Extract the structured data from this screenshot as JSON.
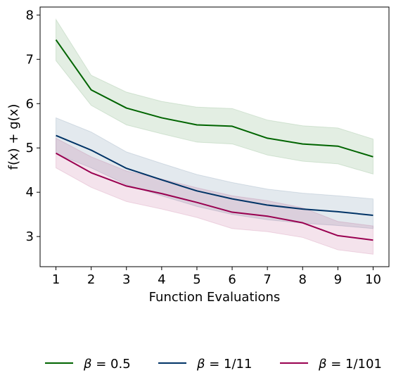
{
  "chart_data": {
    "type": "line",
    "title": "",
    "xlabel": "Function Evaluations",
    "ylabel": "f(x) + g(x)",
    "x": [
      1,
      2,
      3,
      4,
      5,
      6,
      7,
      8,
      9,
      10
    ],
    "xticks": [
      1,
      2,
      3,
      4,
      5,
      6,
      7,
      8,
      9,
      10
    ],
    "yticks": [
      3,
      4,
      5,
      6,
      7,
      8
    ],
    "xlim": [
      0.55,
      10.45
    ],
    "ylim": [
      2.32,
      8.18
    ],
    "grid": false,
    "legend_placement": "bottom",
    "series": [
      {
        "name_prefix": "β",
        "name_value": "= 0.5",
        "color": "#006400",
        "values": [
          7.44,
          6.31,
          5.9,
          5.68,
          5.52,
          5.49,
          5.22,
          5.09,
          5.04,
          4.8
        ],
        "lower": [
          6.97,
          5.96,
          5.52,
          5.32,
          5.13,
          5.09,
          4.84,
          4.7,
          4.64,
          4.41
        ],
        "upper": [
          7.9,
          6.64,
          6.26,
          6.05,
          5.92,
          5.89,
          5.63,
          5.5,
          5.45,
          5.2
        ]
      },
      {
        "name_prefix": "β",
        "name_value": "= 1/11",
        "color": "#003366",
        "values": [
          5.28,
          4.95,
          4.54,
          4.28,
          4.03,
          3.85,
          3.71,
          3.62,
          3.56,
          3.48
        ],
        "lower": [
          4.87,
          4.55,
          4.17,
          3.92,
          3.68,
          3.5,
          3.38,
          3.3,
          3.25,
          3.18
        ],
        "upper": [
          5.68,
          5.36,
          4.91,
          4.65,
          4.4,
          4.22,
          4.07,
          3.98,
          3.92,
          3.85
        ]
      },
      {
        "name_prefix": "β",
        "name_value": "= 1/101",
        "color": "#990050",
        "values": [
          4.88,
          4.44,
          4.14,
          3.97,
          3.77,
          3.55,
          3.46,
          3.31,
          3.02,
          2.92
        ],
        "lower": [
          4.55,
          4.11,
          3.79,
          3.62,
          3.43,
          3.18,
          3.11,
          2.98,
          2.7,
          2.6
        ],
        "upper": [
          5.22,
          4.8,
          4.48,
          4.3,
          4.1,
          3.92,
          3.81,
          3.65,
          3.34,
          3.24
        ]
      }
    ]
  }
}
